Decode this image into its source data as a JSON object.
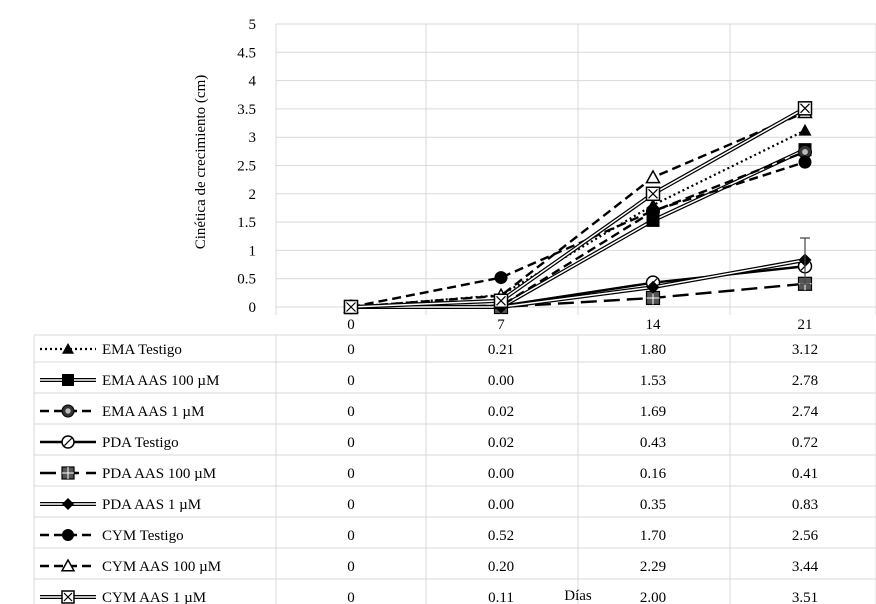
{
  "chart_data": {
    "type": "line",
    "title": "",
    "xlabel": "Días",
    "ylabel": "Cinética de crecimiento (cm)",
    "ylim": [
      0,
      5
    ],
    "yticks": [
      "0",
      "0.5",
      "1",
      "1.5",
      "2",
      "2.5",
      "3",
      "3.5",
      "4",
      "4.5",
      "5"
    ],
    "categories": [
      "0",
      "7",
      "14",
      "21"
    ],
    "grid": true,
    "legend": "data-table-left",
    "series": [
      {
        "name": "EMA Testigo",
        "values": [
          0,
          0.21,
          1.8,
          3.12
        ],
        "labels": [
          "0",
          "0.21",
          "1.80",
          "3.12"
        ],
        "style": "dotted",
        "marker": "triangle-filled"
      },
      {
        "name": "EMA AAS 100 µM",
        "values": [
          0,
          0.0,
          1.53,
          2.78
        ],
        "labels": [
          "0",
          "0.00",
          "1.53",
          "2.78"
        ],
        "style": "double",
        "marker": "square-filled"
      },
      {
        "name": "EMA AAS 1 µM",
        "values": [
          0,
          0.02,
          1.69,
          2.74
        ],
        "labels": [
          "0",
          "0.02",
          "1.69",
          "2.74"
        ],
        "style": "dashed",
        "marker": "circle-dotted"
      },
      {
        "name": "PDA Testigo",
        "values": [
          0,
          0.02,
          0.43,
          0.72
        ],
        "labels": [
          "0",
          "0.02",
          "0.43",
          "0.72"
        ],
        "style": "solid",
        "marker": "circle-hatched"
      },
      {
        "name": "PDA AAS 100 µM",
        "values": [
          0,
          0.0,
          0.16,
          0.41
        ],
        "labels": [
          "0",
          "0.00",
          "0.16",
          "0.41"
        ],
        "style": "long-dashed",
        "marker": "square-checked"
      },
      {
        "name": "PDA AAS 1 µM",
        "values": [
          0,
          0.0,
          0.35,
          0.83
        ],
        "labels": [
          "0",
          "0.00",
          "0.35",
          "0.83"
        ],
        "style": "double",
        "marker": "diamond-filled"
      },
      {
        "name": "CYM Testigo",
        "values": [
          0,
          0.52,
          1.7,
          2.56
        ],
        "labels": [
          "0",
          "0.52",
          "1.70",
          "2.56"
        ],
        "style": "dashed",
        "marker": "circle-filled"
      },
      {
        "name": "CYM AAS 100 µM",
        "values": [
          0,
          0.2,
          2.29,
          3.44
        ],
        "labels": [
          "0",
          "0.20",
          "2.29",
          "3.44"
        ],
        "style": "dashed",
        "marker": "triangle-open"
      },
      {
        "name": "CYM AAS 1 µM",
        "values": [
          0,
          0.11,
          2.0,
          3.51
        ],
        "labels": [
          "0",
          "0.11",
          "2.00",
          "3.51"
        ],
        "style": "double",
        "marker": "square-crossed"
      }
    ]
  }
}
